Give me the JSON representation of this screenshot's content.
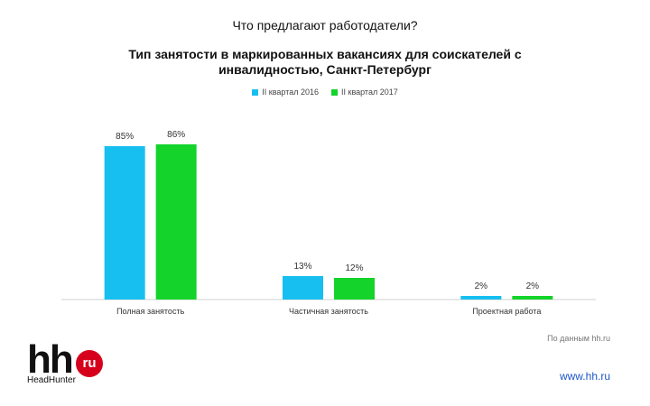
{
  "slide_title": "Что предлагают работодатели?",
  "logo": {
    "mark": "hh",
    "badge": "ru",
    "tagline": "HeadHunter"
  },
  "source_note": "По данным hh.ru",
  "website": "www.hh.ru",
  "colors": {
    "series1": "#17bff0",
    "series2": "#14d32a",
    "axis": "#d0d0d0",
    "logo_badge": "#d6001c",
    "link": "#1a56c8"
  },
  "chart_data": {
    "type": "bar",
    "title": "Тип занятости в маркированных вакансиях для соискателей с инвалидностью, Санкт-Петербург",
    "categories": [
      "Полная занятость",
      "Частичная занятость",
      "Проектная работа"
    ],
    "series": [
      {
        "name": "II квартал 2016",
        "values": [
          85,
          13,
          2
        ],
        "labels": [
          "85%",
          "13%",
          "2%"
        ]
      },
      {
        "name": "II квартал 2017",
        "values": [
          86,
          12,
          2
        ],
        "labels": [
          "86%",
          "12%",
          "2%"
        ]
      }
    ],
    "ylim": [
      0,
      100
    ],
    "legend": "top",
    "grid": false
  }
}
